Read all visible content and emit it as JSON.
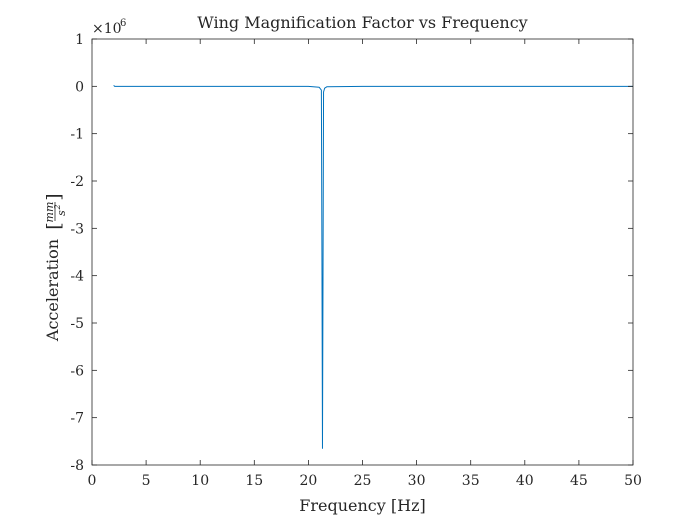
{
  "chart_data": {
    "type": "line",
    "title": "Wing Magnification Factor vs Frequency",
    "xlabel": "Frequency [Hz]",
    "ylabel_prefix": "Acceleration",
    "ylabel_unit_num": "mm",
    "ylabel_unit_den": "s",
    "ylabel_unit_den_exp": "2",
    "y_multiplier_base": "×10",
    "y_multiplier_exp": "6",
    "xlim": [
      0,
      50
    ],
    "ylim": [
      -8,
      1
    ],
    "xticks": [
      0,
      5,
      10,
      15,
      20,
      25,
      30,
      35,
      40,
      45,
      50
    ],
    "yticks": [
      1,
      0,
      -1,
      -2,
      -3,
      -4,
      -5,
      -6,
      -7,
      -8
    ],
    "ytick_labels": [
      "1",
      "0",
      "-1",
      "-2",
      "-3",
      "-4",
      "-5",
      "-6",
      "-7",
      "-8"
    ],
    "xtick_labels": [
      "0",
      "5",
      "10",
      "15",
      "20",
      "25",
      "30",
      "35",
      "40",
      "45",
      "50"
    ],
    "grid": false,
    "box": true,
    "series": [
      {
        "color": "#0072bd",
        "x": [
          2.0,
          2.1,
          2.2,
          5,
          10,
          15,
          20,
          21.0,
          21.2,
          21.25,
          21.3,
          21.35,
          21.4,
          21.5,
          21.7,
          25,
          30,
          35,
          40,
          45,
          50
        ],
        "y": [
          0.02,
          0.0,
          0.0,
          0.0,
          0.0,
          0.0,
          0.0,
          -0.02,
          -0.08,
          -3.5,
          -7.65,
          -4.0,
          -0.12,
          -0.04,
          -0.01,
          0.0,
          0.0,
          0.0,
          0.0,
          0.0,
          0.0
        ]
      }
    ]
  }
}
